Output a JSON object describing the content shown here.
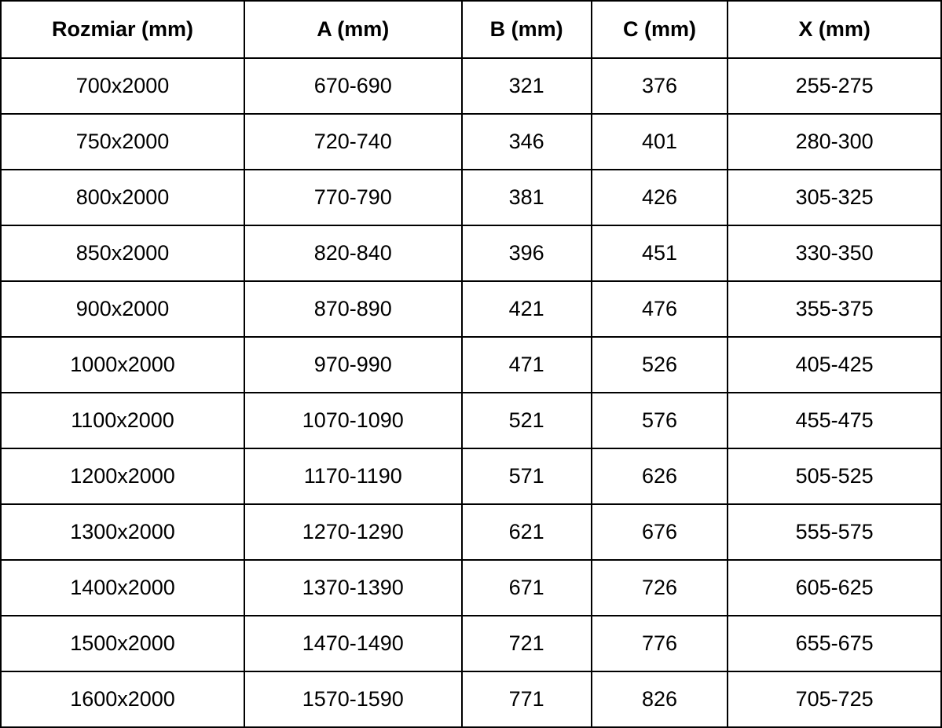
{
  "table": {
    "headers": [
      {
        "key": "rozmiar",
        "label": "Rozmiar (mm)"
      },
      {
        "key": "a",
        "label": "A (mm)"
      },
      {
        "key": "b",
        "label": "B (mm)"
      },
      {
        "key": "c",
        "label": "C (mm)"
      },
      {
        "key": "x",
        "label": "X (mm)"
      }
    ],
    "rows": [
      {
        "rozmiar": "700x2000",
        "a": "670-690",
        "b": "321",
        "c": "376",
        "x": "255-275"
      },
      {
        "rozmiar": "750x2000",
        "a": "720-740",
        "b": "346",
        "c": "401",
        "x": "280-300"
      },
      {
        "rozmiar": "800x2000",
        "a": "770-790",
        "b": "381",
        "c": "426",
        "x": "305-325"
      },
      {
        "rozmiar": "850x2000",
        "a": "820-840",
        "b": "396",
        "c": "451",
        "x": "330-350"
      },
      {
        "rozmiar": "900x2000",
        "a": "870-890",
        "b": "421",
        "c": "476",
        "x": "355-375"
      },
      {
        "rozmiar": "1000x2000",
        "a": "970-990",
        "b": "471",
        "c": "526",
        "x": "405-425"
      },
      {
        "rozmiar": "1100x2000",
        "a": "1070-1090",
        "b": "521",
        "c": "576",
        "x": "455-475"
      },
      {
        "rozmiar": "1200x2000",
        "a": "1170-1190",
        "b": "571",
        "c": "626",
        "x": "505-525"
      },
      {
        "rozmiar": "1300x2000",
        "a": "1270-1290",
        "b": "621",
        "c": "676",
        "x": "555-575"
      },
      {
        "rozmiar": "1400x2000",
        "a": "1370-1390",
        "b": "671",
        "c": "726",
        "x": "605-625"
      },
      {
        "rozmiar": "1500x2000",
        "a": "1470-1490",
        "b": "721",
        "c": "776",
        "x": "655-675"
      },
      {
        "rozmiar": "1600x2000",
        "a": "1570-1590",
        "b": "771",
        "c": "826",
        "x": "705-725"
      }
    ],
    "colors": {
      "border": "#000000",
      "text": "#000000",
      "background": "#ffffff"
    }
  }
}
